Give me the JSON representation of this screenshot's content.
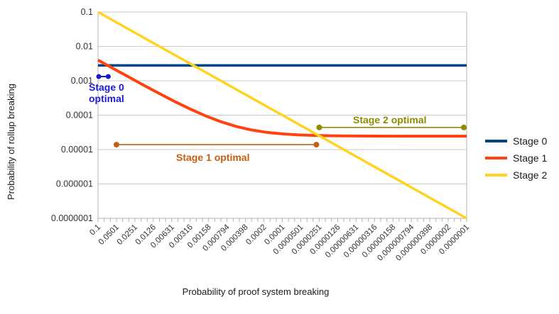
{
  "chart_data": {
    "type": "line",
    "title": "",
    "xlabel": "Probability of proof system breaking",
    "ylabel": "Probability of rollup breaking",
    "x_scale": "log (descending left to right)",
    "y_scale": "log",
    "x_range": [
      0.1,
      1e-07
    ],
    "ylim": [
      1e-07,
      0.1
    ],
    "grid": "horizontal major gridlines, minor tick marks on x axis",
    "y_tick_labels": [
      "0.1",
      "0.01",
      "0.001",
      "0.0001",
      "0.00001",
      "0.000001",
      "0.0000001"
    ],
    "x_tick_labels": [
      "0.1",
      "0.0501",
      "0.0251",
      "0.0126",
      "0.00631",
      "0.00316",
      "0.00158",
      "0.000794",
      "0.000398",
      "0.0002",
      "0.0001",
      "0.0000501",
      "0.0000251",
      "0.0000126",
      "0.00000631",
      "0.00000316",
      "0.00000158",
      "0.000000794",
      "0.000000398",
      "0.0000002",
      "0.0000001"
    ],
    "series": [
      {
        "name": "Stage 0",
        "color": "#004586",
        "width": 3.5,
        "x": [
          0.1,
          1e-07
        ],
        "y": [
          0.0028,
          0.0028
        ]
      },
      {
        "name": "Stage 1",
        "color": "#ff420e",
        "width": 4,
        "x": [
          0.1,
          0.0562,
          0.0316,
          0.0178,
          0.01,
          0.00562,
          0.00316,
          0.00178,
          0.001,
          0.000562,
          0.000316,
          0.000178,
          0.0001,
          5.62e-05,
          3.16e-05,
          1.78e-05,
          1e-05,
          3.16e-06,
          1e-06,
          3.16e-07,
          1e-07
        ],
        "y": [
          0.00402,
          0.00227,
          0.00129,
          0.000736,
          0.000425,
          0.000249,
          0.000151,
          9.56e-05,
          6.45e-05,
          4.7e-05,
          3.71e-05,
          3.16e-05,
          2.85e-05,
          2.67e-05,
          2.58e-05,
          2.52e-05,
          2.49e-05,
          2.46e-05,
          2.45e-05,
          2.45e-05,
          2.45e-05
        ]
      },
      {
        "name": "Stage 2",
        "color": "#ffd320",
        "width": 3.5,
        "x": [
          0.1,
          1e-07
        ],
        "y": [
          0.1,
          1e-07
        ]
      }
    ],
    "annotations": {
      "stage0": {
        "line1": "Stage 0",
        "line2": "optimal",
        "color": "#1a1ad1",
        "y": 0.00133,
        "x_points": [
          0.1,
          0.07
        ],
        "style": "two dots"
      },
      "stage1": {
        "label": "Stage 1 optimal",
        "color": "#c55f11",
        "y": 1.39e-05,
        "x_start": 0.0501,
        "x_end": 2.51e-05,
        "style": "line with end dots"
      },
      "stage2": {
        "label": "Stage 2 optimal",
        "color": "#8c8c00",
        "y": 4.4e-05,
        "x_start": 2.51e-05,
        "x_end": 1e-07,
        "style": "line with end dots"
      }
    },
    "legend": {
      "position": "right",
      "items": [
        {
          "label": "Stage 0",
          "color": "#004586"
        },
        {
          "label": "Stage 1",
          "color": "#ff420e"
        },
        {
          "label": "Stage 2",
          "color": "#ffd320"
        }
      ]
    },
    "colors": {
      "gridline": "#c9c9c9",
      "axis": "#b3b3b3",
      "tick_text": "#333333"
    }
  }
}
